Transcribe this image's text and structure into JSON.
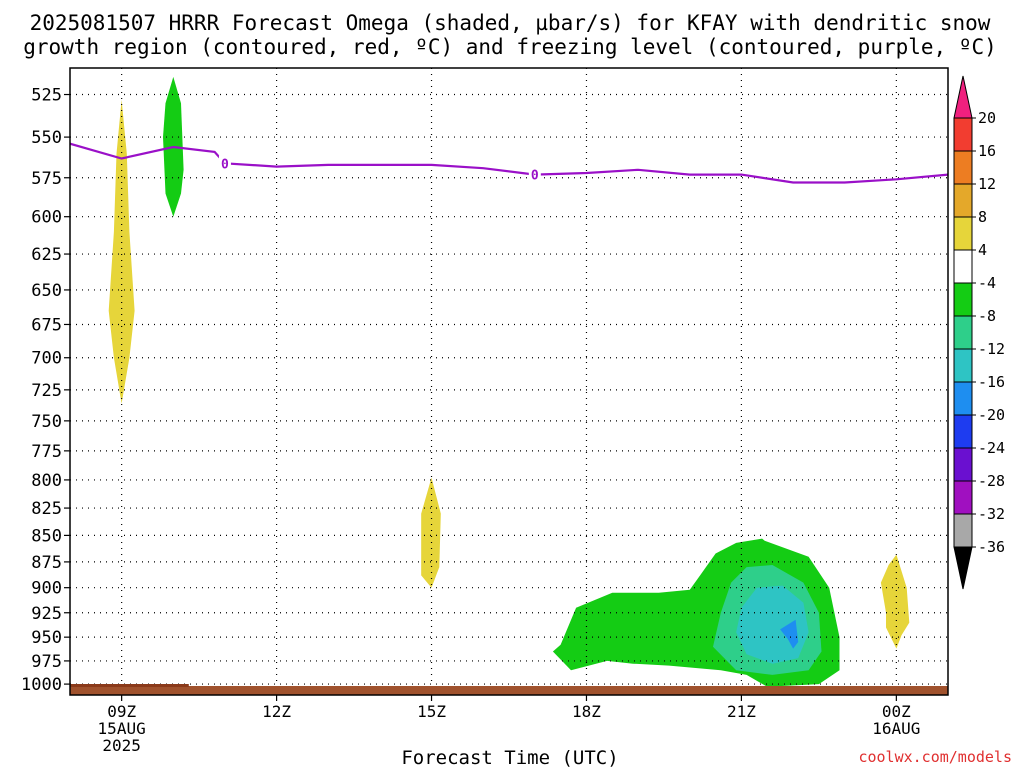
{
  "chart_data": {
    "type": "heatmap",
    "title": "2025081507 HRRR Forecast Omega (shaded, µbar/s) for KFAY with dendritic snow",
    "subtitle": "growth region (contoured, red, ºC) and freezing level (contoured, purple, ºC)",
    "xlabel": "Forecast Time (UTC)",
    "credit": "coolwx.com/models",
    "x_ticks": [
      {
        "hour": 9,
        "lines": [
          "09Z",
          "15AUG",
          "2025"
        ]
      },
      {
        "hour": 12,
        "lines": [
          "12Z"
        ]
      },
      {
        "hour": 15,
        "lines": [
          "15Z"
        ]
      },
      {
        "hour": 18,
        "lines": [
          "18Z"
        ]
      },
      {
        "hour": 21,
        "lines": [
          "21Z"
        ]
      },
      {
        "hour": 24,
        "lines": [
          "00Z",
          "16AUG"
        ]
      }
    ],
    "x_range_hours": [
      8.0,
      25.0
    ],
    "y_ticks": [
      525,
      550,
      575,
      600,
      625,
      650,
      675,
      700,
      725,
      750,
      775,
      800,
      825,
      850,
      875,
      900,
      925,
      950,
      975,
      1000
    ],
    "y_range_mb": [
      510,
      1012
    ],
    "y_scale": "log-pressure (inverted)",
    "grid": true,
    "colorbar": {
      "labels": [
        "20",
        "16",
        "12",
        "8",
        "4",
        "-4",
        "-8",
        "-12",
        "-16",
        "-20",
        "-24",
        "-28",
        "-32",
        "-36"
      ],
      "colors": [
        "#f0207e",
        "#f23d30",
        "#ed7d22",
        "#e4a82a",
        "#e6d53a",
        "#ffffff",
        "#14cc14",
        "#2ecf8a",
        "#2ec4c4",
        "#1e8ef0",
        "#1e3cf0",
        "#6a10d0",
        "#a010c0",
        "#a8a8a8",
        "#000000"
      ]
    },
    "freezing_level": {
      "label": "0",
      "color": "#9a10c8",
      "hours": [
        8.0,
        9.0,
        10.0,
        10.8,
        11.0,
        12.0,
        13.0,
        14.0,
        15.0,
        16.0,
        17.0,
        18.0,
        19.0,
        20.0,
        21.0,
        22.0,
        23.0,
        24.0,
        25.0
      ],
      "pressure_mb": [
        554,
        563,
        556,
        559,
        566,
        568,
        567,
        567,
        567,
        569,
        573,
        572,
        570,
        573,
        573,
        578,
        578,
        576,
        573
      ]
    },
    "omega_regions": [
      {
        "value_range": "4 to 8",
        "color": "#e6d53a",
        "polygon": [
          [
            9.0,
            528
          ],
          [
            9.1,
            560
          ],
          [
            9.15,
            610
          ],
          [
            9.25,
            665
          ],
          [
            9.15,
            700
          ],
          [
            9.0,
            736
          ],
          [
            8.85,
            700
          ],
          [
            8.75,
            665
          ],
          [
            8.85,
            610
          ],
          [
            8.9,
            560
          ]
        ]
      },
      {
        "value_range": "-4 to -8",
        "color": "#14cc14",
        "polygon": [
          [
            10.0,
            515
          ],
          [
            10.15,
            530
          ],
          [
            10.2,
            570
          ],
          [
            10.15,
            585
          ],
          [
            10.0,
            600
          ],
          [
            9.85,
            585
          ],
          [
            9.8,
            550
          ],
          [
            9.85,
            530
          ]
        ]
      },
      {
        "value_range": "4 to 8",
        "color": "#e6d53a",
        "polygon": [
          [
            15.0,
            798
          ],
          [
            15.18,
            830
          ],
          [
            15.15,
            880
          ],
          [
            15.0,
            900
          ],
          [
            14.8,
            888
          ],
          [
            14.8,
            830
          ]
        ]
      },
      {
        "value_range": "-4 to -8",
        "color": "#14cc14",
        "polygon": [
          [
            17.5,
            958
          ],
          [
            17.8,
            920
          ],
          [
            18.5,
            905
          ],
          [
            19.4,
            905
          ],
          [
            20.0,
            902
          ],
          [
            20.2,
            888
          ],
          [
            20.5,
            867
          ],
          [
            20.9,
            857
          ],
          [
            21.4,
            853
          ],
          [
            21.45,
            855
          ],
          [
            22.3,
            870
          ],
          [
            22.7,
            900
          ],
          [
            22.9,
            950
          ],
          [
            22.9,
            985
          ],
          [
            22.5,
            1000
          ],
          [
            21.5,
            1003
          ],
          [
            21.1,
            990
          ],
          [
            20.6,
            985
          ],
          [
            19.6,
            980
          ],
          [
            18.9,
            978
          ],
          [
            18.4,
            975
          ],
          [
            17.7,
            985
          ],
          [
            17.35,
            965
          ]
        ]
      },
      {
        "value_range": "-8 to -12",
        "color": "#2ecf8a",
        "polygon": [
          [
            20.6,
            925
          ],
          [
            20.8,
            895
          ],
          [
            21.1,
            880
          ],
          [
            21.6,
            878
          ],
          [
            22.2,
            895
          ],
          [
            22.5,
            925
          ],
          [
            22.55,
            965
          ],
          [
            22.3,
            985
          ],
          [
            21.6,
            990
          ],
          [
            20.9,
            985
          ],
          [
            20.45,
            960
          ]
        ]
      },
      {
        "value_range": "-12 to -16",
        "color": "#2ec4c4",
        "polygon": [
          [
            21.0,
            920
          ],
          [
            21.3,
            900
          ],
          [
            21.8,
            898
          ],
          [
            22.2,
            915
          ],
          [
            22.3,
            945
          ],
          [
            22.1,
            972
          ],
          [
            21.6,
            978
          ],
          [
            21.1,
            968
          ],
          [
            20.9,
            945
          ]
        ]
      },
      {
        "value_range": "-16 to -20",
        "color": "#1e8ef0",
        "polygon": [
          [
            21.75,
            942
          ],
          [
            22.05,
            932
          ],
          [
            22.1,
            955
          ],
          [
            22.0,
            962
          ],
          [
            21.9,
            952
          ]
        ]
      },
      {
        "value_range": "4 to 8",
        "color": "#e6d53a",
        "polygon": [
          [
            24.0,
            868
          ],
          [
            24.2,
            900
          ],
          [
            24.25,
            935
          ],
          [
            24.1,
            948
          ],
          [
            24.0,
            962
          ],
          [
            23.8,
            940
          ],
          [
            23.8,
            925
          ],
          [
            23.7,
            895
          ],
          [
            23.85,
            878
          ]
        ]
      }
    ],
    "surface_strip_color": "#a0522d"
  }
}
